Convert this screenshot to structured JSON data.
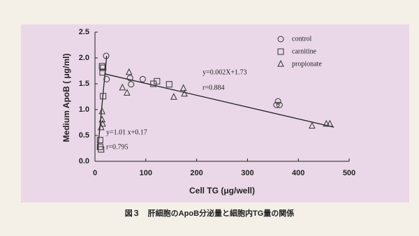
{
  "chart_data": {
    "type": "scatter",
    "y_label": "Medium ApoB ( μg/ml)",
    "x_label": "Cell TG (μg/well)",
    "caption": "図３　肝細胞のApoB分泌量と細胞内TG量の関係",
    "xlim": [
      0,
      500
    ],
    "xticks": [
      0,
      100,
      200,
      300,
      400,
      500
    ],
    "ylim": [
      0,
      2.5
    ],
    "yticks": [
      {
        "value": 0,
        "label": "0.0"
      },
      0.5,
      {
        "value": 1,
        "label": "1.0"
      },
      1.5,
      {
        "value": 2,
        "label": "2.0"
      },
      2.5
    ],
    "legend": "top-right",
    "series": [
      {
        "name": "control",
        "marker": "circle",
        "color": "#333333",
        "x": [
          22,
          23,
          69,
          71,
          94,
          360,
          363,
          357
        ],
        "values": [
          2.04,
          1.59,
          1.61,
          1.49,
          1.59,
          1.16,
          1.09,
          1.09
        ]
      },
      {
        "name": "carnitine",
        "marker": "square",
        "color": "#333333",
        "x": [
          14,
          16,
          15,
          16,
          10,
          10,
          12,
          115,
          122,
          146
        ],
        "values": [
          1.84,
          1.81,
          1.72,
          1.26,
          0.41,
          0.28,
          0.23,
          1.5,
          1.55,
          1.49
        ]
      },
      {
        "name": "propionate",
        "marker": "triangle",
        "color": "#333333",
        "x": [
          14,
          14,
          15,
          12,
          54,
          63,
          67,
          155,
          174,
          176,
          427,
          455,
          462
        ],
        "values": [
          0.96,
          0.8,
          0.72,
          0.65,
          1.42,
          1.32,
          1.72,
          1.24,
          1.41,
          1.3,
          0.68,
          0.72,
          0.72
        ]
      }
    ],
    "fit_lines": [
      {
        "x": [
          5.5,
          23
        ],
        "values": [
          0.23,
          2.04
        ]
      },
      {
        "x": [
          20,
          470
        ],
        "values": [
          1.69,
          0.66
        ]
      }
    ],
    "annotations": [
      "y=0.002X+1.73",
      "r=0.884",
      "y=1.01 x+0.17",
      "r=0.795"
    ]
  }
}
